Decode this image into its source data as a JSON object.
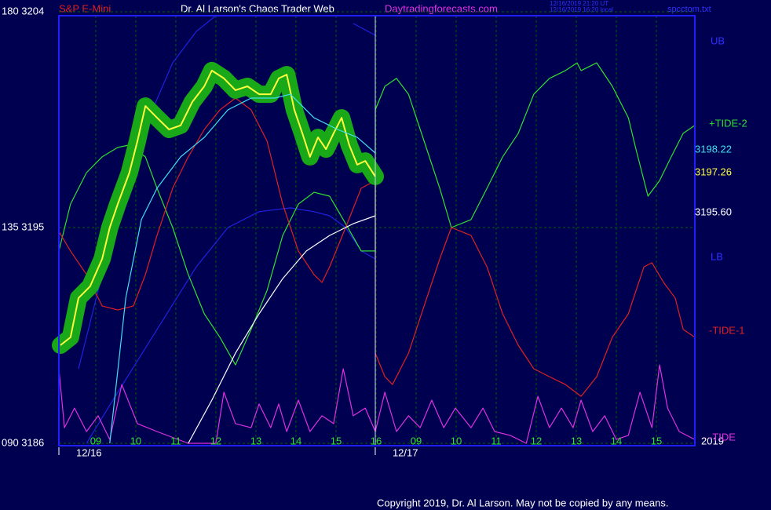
{
  "chart_data": {
    "type": "line",
    "title": "Dr. Al Larson's Chaos Trader Web",
    "instrument": "S&P E-Mini",
    "website": "Daytradingforecasts.com",
    "timestamp_ut": "12/16/2019 21:20 UT",
    "timestamp_local": "12/16/2019 16:20 local",
    "file": "spcctom.txt",
    "copyright": "Copyright 2019, Dr. Al Larson. May not be copied by any means.",
    "year": "2019",
    "xlim": [
      0.08,
      15.96
    ],
    "ylim": [
      3186,
      3204
    ],
    "yticks": [
      {
        "value": 3204,
        "label": "180  3204"
      },
      {
        "value": 3195,
        "label": "135  3195"
      },
      {
        "value": 3186,
        "label": "090  3186"
      }
    ],
    "xticks": [
      {
        "value": 1,
        "label": "09"
      },
      {
        "value": 2,
        "label": "10"
      },
      {
        "value": 3,
        "label": "11"
      },
      {
        "value": 4,
        "label": "12"
      },
      {
        "value": 5,
        "label": "13"
      },
      {
        "value": 6,
        "label": "14"
      },
      {
        "value": 7,
        "label": "15"
      },
      {
        "value": 8,
        "label": "16"
      },
      {
        "value": 9,
        "label": "09"
      },
      {
        "value": 10,
        "label": "10"
      },
      {
        "value": 11,
        "label": "11"
      },
      {
        "value": 12,
        "label": "12"
      },
      {
        "value": 13,
        "label": "13"
      },
      {
        "value": 14,
        "label": "14"
      },
      {
        "value": 15,
        "label": "15"
      }
    ],
    "date_ticks": [
      {
        "value": 0.08,
        "label": "12/16"
      },
      {
        "value": 7.98,
        "label": "12/17"
      }
    ],
    "grid": true,
    "right_labels": [
      {
        "text": "UB",
        "color": "#3030ff"
      },
      {
        "text": "+TIDE-2",
        "color": "#30e030"
      },
      {
        "text": "3198.22",
        "color": "#40e0f0"
      },
      {
        "text": "3197.26",
        "color": "#ffff40"
      },
      {
        "text": "3195.60",
        "color": "#ffffff"
      },
      {
        "text": "LB",
        "color": "#3030ff"
      },
      {
        "text": "-TIDE-1",
        "color": "#e02020"
      },
      {
        "text": "-TIDE",
        "color": "#e030e0"
      }
    ],
    "halo_color": "#18a818",
    "series": [
      {
        "name": "Blue upper",
        "color": "#2020e0",
        "x": [
          0.57,
          1.16,
          1.75,
          2.33,
          2.92,
          3.51,
          4.0,
          6.84,
          7.43,
          7.98
        ],
        "values": [
          3189.11,
          3193.04,
          3196.64,
          3199.58,
          3201.87,
          3203.18,
          3203.84,
          null,
          3203.51,
          3203.02
        ]
      },
      {
        "name": "Blue lower",
        "color": "#2020e0",
        "x": [
          0.77,
          1.55,
          2.53,
          3.51,
          4.3,
          5.08,
          5.86,
          6.45,
          6.84,
          7.24,
          7.63,
          7.98
        ],
        "values": [
          3186.0,
          3188.13,
          3190.75,
          3193.36,
          3195.0,
          3195.66,
          3195.82,
          3195.66,
          3195.49,
          3195.0,
          3194.02,
          3193.69
        ]
      },
      {
        "name": "+TIDE-2",
        "color": "#30e030",
        "x": [
          0.08,
          0.37,
          0.77,
          1.16,
          1.55,
          1.84,
          2.24,
          2.53,
          2.92,
          3.31,
          3.71,
          4.1,
          4.49,
          4.88,
          5.28,
          5.67,
          6.06,
          6.45,
          6.84,
          7.24,
          7.63,
          7.98,
          7.98,
          8.22,
          8.51,
          8.81,
          9.2,
          9.59,
          9.88,
          10.37,
          10.77,
          11.16,
          11.55,
          11.94,
          12.33,
          12.73,
          13.02,
          13.12,
          13.51,
          13.9,
          14.3,
          14.49,
          14.79,
          15.08,
          15.37,
          15.67,
          15.96
        ],
        "values": [
          3194.02,
          3195.98,
          3197.29,
          3197.95,
          3198.34,
          3198.44,
          3197.95,
          3196.64,
          3195.0,
          3193.04,
          3191.4,
          3190.42,
          3189.27,
          3190.75,
          3192.38,
          3194.67,
          3195.98,
          3196.47,
          3196.31,
          3195.16,
          3194.02,
          3194.02,
          3199.91,
          3200.89,
          3201.22,
          3200.56,
          3198.6,
          3196.64,
          3195.0,
          3195.33,
          3196.64,
          3197.95,
          3198.93,
          3200.56,
          3201.22,
          3201.55,
          3201.87,
          3201.55,
          3201.87,
          3200.89,
          3199.58,
          3198.27,
          3196.31,
          3196.96,
          3197.95,
          3198.93,
          3199.26
        ]
      },
      {
        "name": "-TIDE-1",
        "color": "#e02020",
        "x": [
          0.08,
          0.37,
          0.77,
          1.16,
          1.55,
          1.94,
          2.24,
          2.53,
          2.92,
          3.31,
          3.71,
          4.1,
          4.49,
          4.88,
          5.28,
          5.67,
          6.06,
          6.45,
          6.65,
          6.84,
          7.24,
          7.63,
          7.98,
          7.98,
          8.22,
          8.41,
          8.81,
          9.2,
          9.59,
          9.88,
          10.37,
          10.77,
          11.16,
          11.55,
          11.94,
          12.33,
          12.73,
          13.12,
          13.51,
          13.9,
          14.3,
          14.69,
          14.89,
          15.18,
          15.47,
          15.67,
          15.96
        ],
        "values": [
          3194.84,
          3194.02,
          3193.04,
          3191.73,
          3191.56,
          3191.73,
          3193.04,
          3194.67,
          3196.64,
          3197.95,
          3199.09,
          3199.91,
          3200.4,
          3199.91,
          3198.6,
          3195.98,
          3194.02,
          3193.04,
          3192.71,
          3193.36,
          3195.0,
          3196.64,
          3196.96,
          3189.76,
          3188.78,
          3188.45,
          3189.76,
          3191.73,
          3193.69,
          3195.0,
          3194.67,
          3193.36,
          3191.4,
          3190.09,
          3189.11,
          3188.78,
          3188.45,
          3187.96,
          3188.78,
          3190.42,
          3191.4,
          3193.36,
          3193.53,
          3192.71,
          3192.06,
          3190.75,
          3190.42
        ]
      },
      {
        "name": "-TIDE",
        "color": "#e030e0",
        "x": [
          0.08,
          0.22,
          0.47,
          0.77,
          1.06,
          1.35,
          1.65,
          2.04,
          2.53,
          3.31,
          4.0,
          4.2,
          4.49,
          4.88,
          5.08,
          5.37,
          5.57,
          5.77,
          6.06,
          6.35,
          6.65,
          6.94,
          7.18,
          7.43,
          7.73,
          7.98,
          8.22,
          8.51,
          8.81,
          9.1,
          9.39,
          9.69,
          9.98,
          10.37,
          10.67,
          10.96,
          11.35,
          11.75,
          12.04,
          12.33,
          12.63,
          12.92,
          13.12,
          13.41,
          13.71,
          14.0,
          14.3,
          14.59,
          14.89,
          15.08,
          15.28,
          15.57,
          15.96
        ],
        "values": [
          3189.11,
          3186.65,
          3187.47,
          3186.49,
          3187.15,
          3186.16,
          3188.45,
          3186.82,
          3186.49,
          3186.0,
          3186.0,
          3188.13,
          3186.82,
          3186.65,
          3187.64,
          3186.65,
          3187.64,
          3186.49,
          3187.8,
          3186.49,
          3187.15,
          3186.82,
          3189.11,
          3187.15,
          3187.47,
          3186.49,
          3188.13,
          3186.49,
          3187.15,
          3186.65,
          3187.8,
          3186.65,
          3187.47,
          3186.65,
          3187.47,
          3186.49,
          3186.33,
          3186.0,
          3187.96,
          3186.65,
          3187.47,
          3186.65,
          3187.8,
          3186.49,
          3187.15,
          3186.16,
          3186.33,
          3188.13,
          3186.65,
          3189.27,
          3187.47,
          3186.49,
          3186.16
        ]
      },
      {
        "name": "White average",
        "color": "#ffffff",
        "x": [
          3.31,
          3.9,
          4.49,
          5.08,
          5.67,
          6.26,
          6.84,
          7.43,
          7.98
        ],
        "values": [
          3186.0,
          3187.8,
          3189.76,
          3191.4,
          3192.87,
          3194.02,
          3194.67,
          3195.16,
          3195.49
        ]
      },
      {
        "name": "Price",
        "color": "#ffff40",
        "halo": true,
        "x": [
          0.12,
          0.37,
          0.57,
          0.86,
          1.16,
          1.35,
          1.55,
          1.84,
          2.04,
          2.24,
          2.53,
          2.83,
          3.12,
          3.41,
          3.71,
          3.9,
          4.2,
          4.49,
          4.79,
          5.08,
          5.37,
          5.57,
          5.77,
          5.96,
          6.16,
          6.35,
          6.55,
          6.75,
          6.94,
          7.14,
          7.33,
          7.53,
          7.73,
          7.98
        ],
        "values": [
          3190.09,
          3190.42,
          3192.06,
          3192.55,
          3193.69,
          3195.0,
          3195.98,
          3197.29,
          3198.6,
          3200.07,
          3199.58,
          3199.09,
          3199.26,
          3200.24,
          3200.89,
          3201.55,
          3201.22,
          3200.73,
          3200.89,
          3200.56,
          3200.56,
          3201.22,
          3201.38,
          3199.91,
          3198.93,
          3197.95,
          3198.76,
          3198.27,
          3198.93,
          3199.58,
          3198.44,
          3197.62,
          3197.78,
          3197.13
        ]
      },
      {
        "name": "Cyan average",
        "color": "#40e0f0",
        "x": [
          1.35,
          1.75,
          2.14,
          2.53,
          3.12,
          3.71,
          4.3,
          4.88,
          5.47,
          5.86,
          6.45,
          7.04,
          7.53,
          7.98
        ],
        "values": [
          3186.0,
          3192.06,
          3195.33,
          3196.64,
          3197.95,
          3198.76,
          3199.91,
          3200.4,
          3200.4,
          3200.56,
          3199.58,
          3199.09,
          3198.76,
          3198.11
        ]
      }
    ]
  }
}
